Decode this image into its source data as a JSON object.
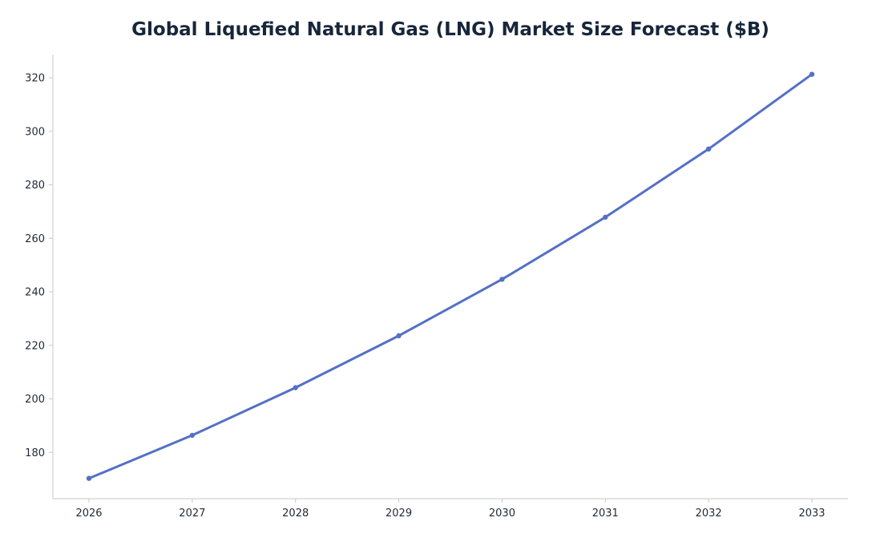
{
  "chart_data": {
    "type": "line",
    "title": "Global Liquefied Natural Gas (LNG) Market Size Forecast ($B)",
    "xlabel": "",
    "ylabel": "",
    "x": [
      "2026",
      "2027",
      "2028",
      "2029",
      "2030",
      "2031",
      "2032",
      "2033"
    ],
    "series": [
      {
        "values": [
          170.3,
          186.4,
          204.2,
          223.6,
          244.7,
          267.9,
          293.4,
          321.3
        ],
        "color": "#5470c6"
      }
    ],
    "yticks": [
      180,
      200,
      220,
      240,
      260,
      280,
      300,
      320
    ],
    "ylim": [
      162.7,
      328.7
    ],
    "grid": false,
    "legend": "none",
    "markers": true
  },
  "colors": {
    "axis": "#c8c8c8",
    "text": "#17263a"
  }
}
